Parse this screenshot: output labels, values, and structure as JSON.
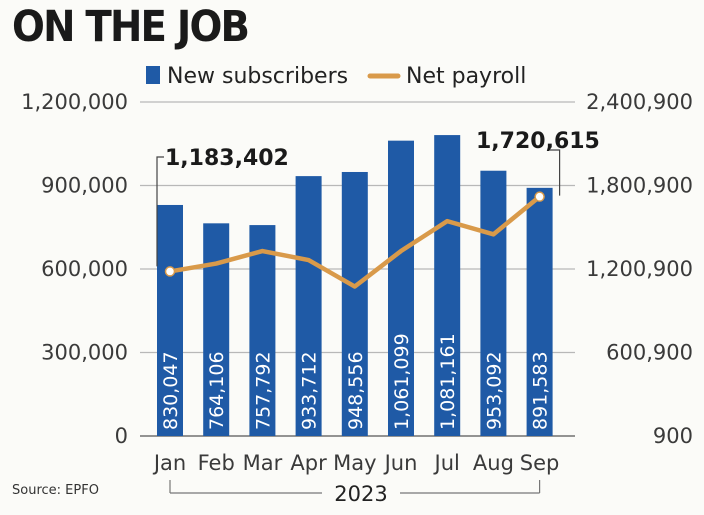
{
  "page": {
    "title": "ON THE JOB",
    "source": "Source: EPFO"
  },
  "chart_data": {
    "type": "bar",
    "categories": [
      "Jan",
      "Feb",
      "Mar",
      "Apr",
      "May",
      "Jun",
      "Jul",
      "Aug",
      "Sep"
    ],
    "year_label": "2023",
    "series": [
      {
        "name": "New subscribers",
        "type": "bar",
        "axis": "left",
        "color": "#1f5aa6",
        "values": [
          830047,
          764106,
          757792,
          933712,
          948556,
          1061099,
          1081161,
          953092,
          891583
        ],
        "labels": [
          "830,047",
          "764,106",
          "757,792",
          "933,712",
          "948,556",
          "1,061,099",
          "1,081,161",
          "953,092",
          "891,583"
        ]
      },
      {
        "name": "Net payroll",
        "type": "line",
        "axis": "right",
        "color": "#d99a4a",
        "values": [
          1183402,
          1240000,
          1330000,
          1265000,
          1075000,
          1330000,
          1545000,
          1450000,
          1720615
        ]
      }
    ],
    "left_axis": {
      "ylim": [
        0,
        1200000
      ],
      "ticks": [
        0,
        300000,
        600000,
        900000,
        1200000
      ],
      "tick_labels": [
        "0",
        "300,000",
        "600,000",
        "900,000",
        "1,200,000"
      ]
    },
    "right_axis": {
      "ylim": [
        900,
        2400900
      ],
      "ticks": [
        900,
        600900,
        1200900,
        1800900,
        2400900
      ],
      "tick_labels": [
        "900",
        "600,900",
        "1,200,900",
        "1,800,900",
        "2,400,900"
      ]
    },
    "annotations": [
      {
        "text": "1,183,402",
        "category": "Jan"
      },
      {
        "text": "1,720,615",
        "category": "Sep"
      }
    ],
    "legend_position": "top",
    "grid": "horizontal"
  }
}
